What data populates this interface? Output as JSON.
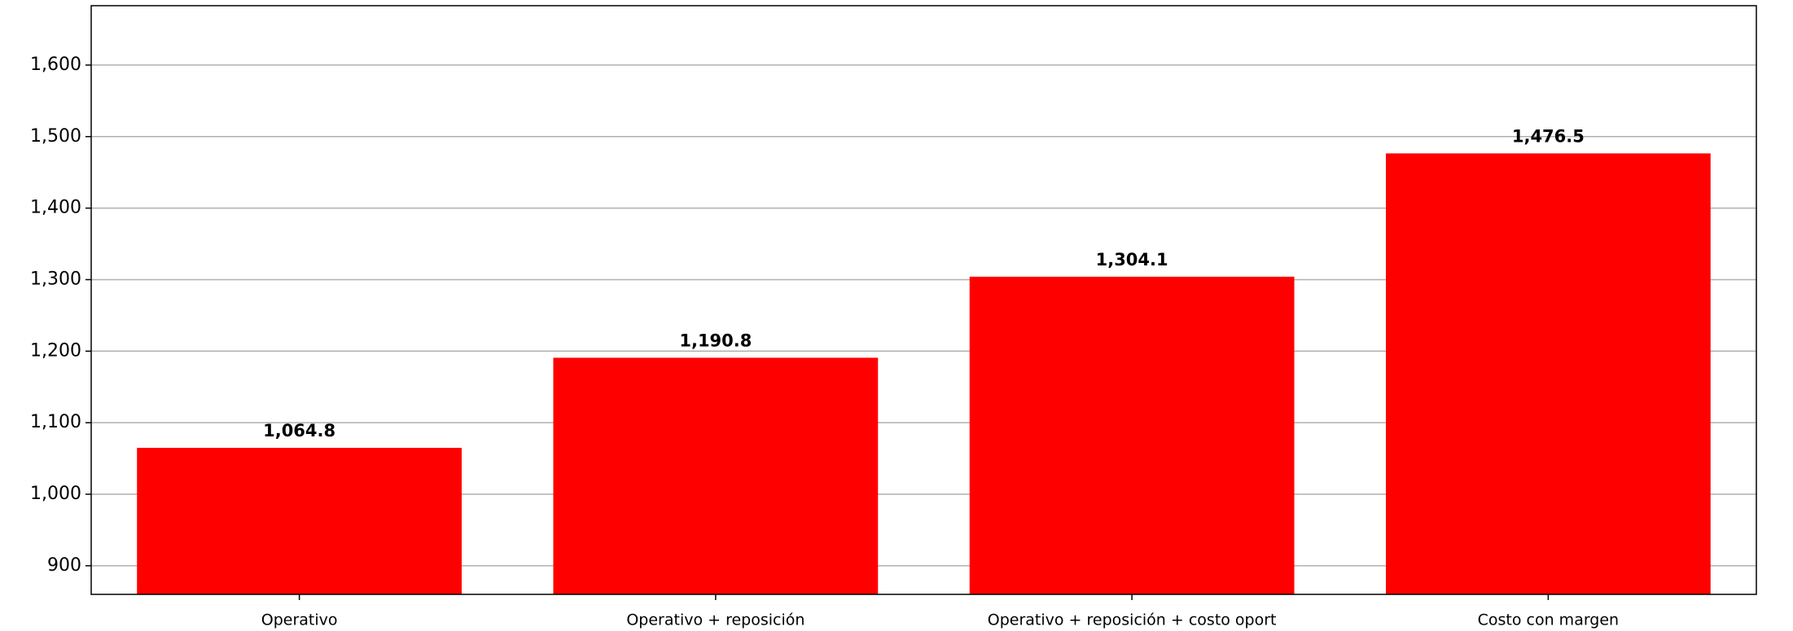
{
  "chart_data": {
    "type": "bar",
    "categories": [
      "Operativo",
      "Operativo + reposición",
      "Operativo + reposición + costo oport",
      "Costo con margen"
    ],
    "values": [
      1064.8,
      1190.8,
      1304.1,
      1476.5
    ],
    "value_labels": [
      "1,064.8",
      "1,190.8",
      "1,304.1",
      "1,476.5"
    ],
    "color": "#ff0000",
    "ylim": [
      860,
      1683
    ],
    "yticks": [
      900,
      {
        "value": 1000,
        "label": "1,000"
      },
      {
        "value": 1100,
        "label": "1,100"
      },
      {
        "value": 1200,
        "label": "1,200"
      },
      {
        "value": 1300,
        "label": "1,300"
      },
      {
        "value": 1400,
        "label": "1,400"
      },
      {
        "value": 1500,
        "label": "1,500"
      },
      {
        "value": 1600,
        "label": "1,600"
      }
    ],
    "grid": true
  }
}
